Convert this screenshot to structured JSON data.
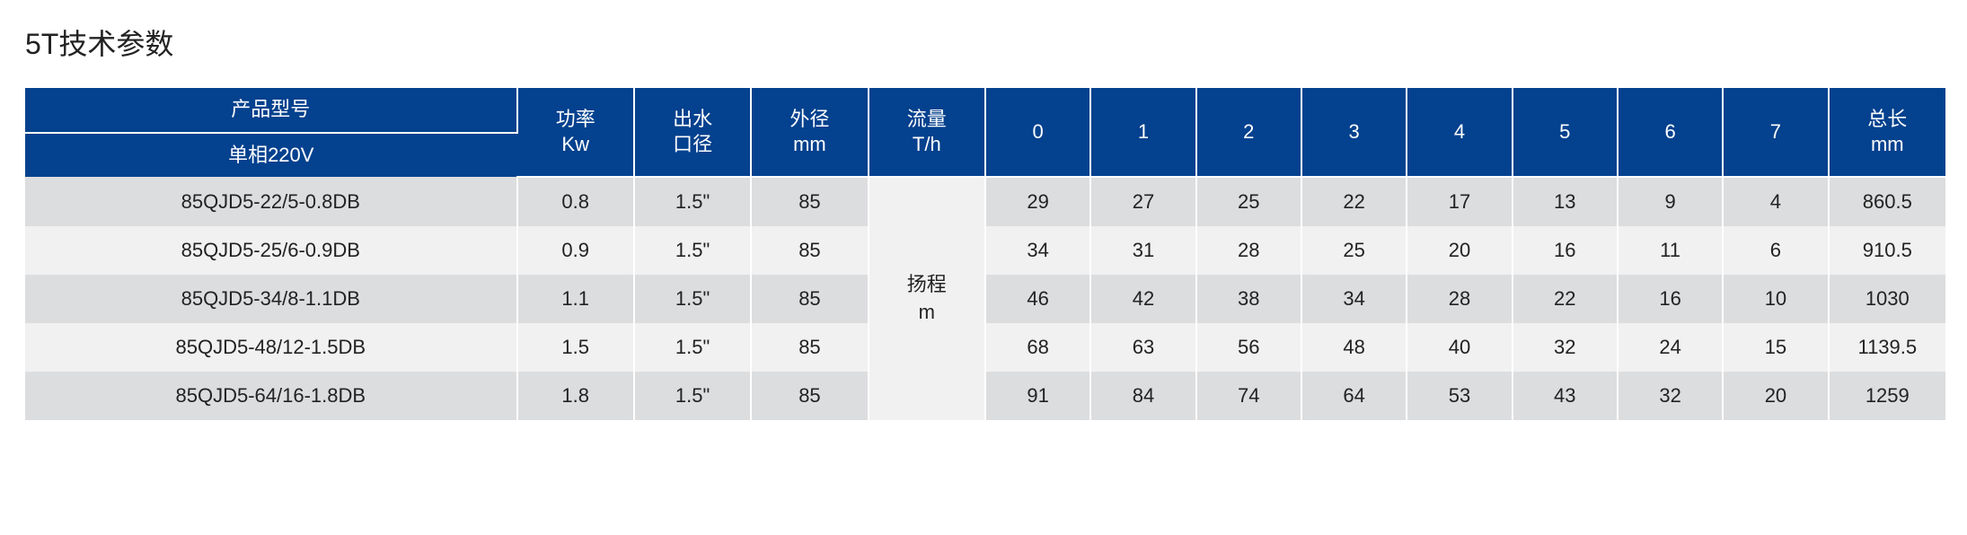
{
  "title": "5T技术参数",
  "header": {
    "model_label": "产品型号",
    "model_sub": "单相220V",
    "power": "功率\nKw",
    "outlet": "出水\n口径",
    "diameter": "外径\nmm",
    "flow": "流量\nT/h",
    "nums": [
      "0",
      "1",
      "2",
      "3",
      "4",
      "5",
      "6",
      "7"
    ],
    "total_len": "总长\nmm"
  },
  "flow_side_label": "扬程\nm",
  "rows": [
    {
      "model": "85QJD5-22/5-0.8DB",
      "kw": "0.8",
      "outlet": "1.5\"",
      "od": "85",
      "v": [
        "29",
        "27",
        "25",
        "22",
        "17",
        "13",
        "9",
        "4"
      ],
      "len": "860.5"
    },
    {
      "model": "85QJD5-25/6-0.9DB",
      "kw": "0.9",
      "outlet": "1.5\"",
      "od": "85",
      "v": [
        "34",
        "31",
        "28",
        "25",
        "20",
        "16",
        "11",
        "6"
      ],
      "len": "910.5"
    },
    {
      "model": "85QJD5-34/8-1.1DB",
      "kw": "1.1",
      "outlet": "1.5\"",
      "od": "85",
      "v": [
        "46",
        "42",
        "38",
        "34",
        "28",
        "22",
        "16",
        "10"
      ],
      "len": "1030"
    },
    {
      "model": "85QJD5-48/12-1.5DB",
      "kw": "1.5",
      "outlet": "1.5\"",
      "od": "85",
      "v": [
        "68",
        "63",
        "56",
        "48",
        "40",
        "32",
        "24",
        "15"
      ],
      "len": "1139.5"
    },
    {
      "model": "85QJD5-64/16-1.8DB",
      "kw": "1.8",
      "outlet": "1.5\"",
      "od": "85",
      "v": [
        "91",
        "84",
        "74",
        "64",
        "53",
        "43",
        "32",
        "20"
      ],
      "len": "1259"
    }
  ],
  "colors": {
    "header_bg": "#04418e",
    "header_fg": "#ffffff",
    "row_odd": "#dcdddf",
    "row_even": "#f1f1f2"
  }
}
